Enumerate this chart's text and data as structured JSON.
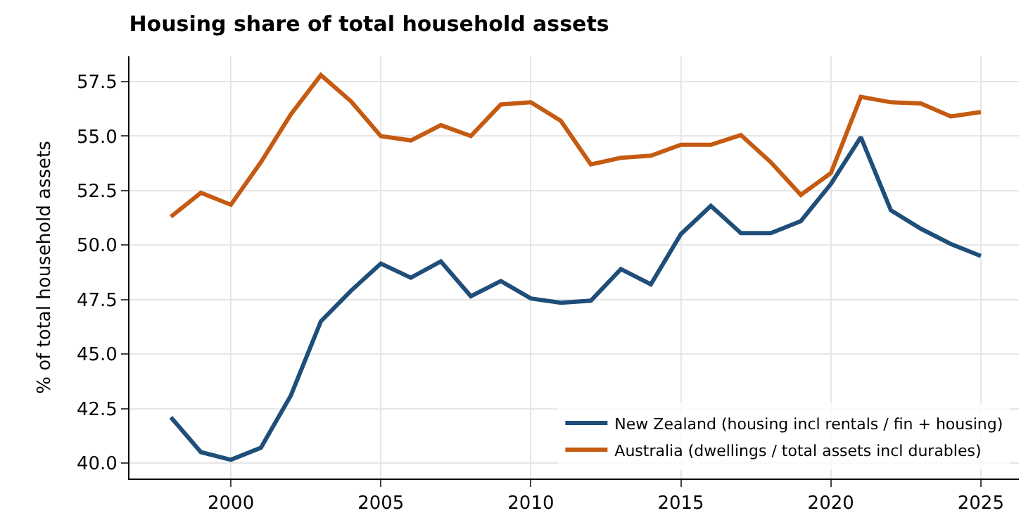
{
  "chart_data": {
    "type": "line",
    "title": "Housing share of total household assets",
    "ylabel": "% of total household assets",
    "x": [
      1998,
      1999,
      2000,
      2001,
      2002,
      2003,
      2004,
      2005,
      2006,
      2007,
      2008,
      2009,
      2010,
      2011,
      2012,
      2013,
      2014,
      2015,
      2016,
      2017,
      2018,
      2019,
      2020,
      2021,
      2022,
      2023,
      2024,
      2025
    ],
    "series": [
      {
        "name": "New Zealand (housing incl rentals / fin + housing)",
        "color": "#1f4e79",
        "values": [
          42.1,
          40.5,
          40.15,
          40.7,
          43.1,
          46.5,
          47.9,
          49.15,
          48.5,
          49.25,
          47.65,
          48.35,
          47.55,
          47.35,
          47.45,
          48.9,
          48.2,
          50.5,
          51.8,
          50.55,
          50.55,
          51.1,
          52.8,
          54.95,
          51.6,
          50.75,
          50.05,
          49.5
        ]
      },
      {
        "name": "Australia (dwellings / total assets incl durables)",
        "color": "#c55a11",
        "values": [
          51.3,
          52.4,
          51.85,
          53.8,
          56.0,
          57.8,
          56.6,
          55.0,
          54.8,
          55.5,
          55.0,
          56.45,
          56.55,
          55.7,
          53.7,
          54.0,
          54.1,
          54.6,
          54.6,
          55.05,
          53.8,
          52.3,
          53.3,
          56.8,
          56.55,
          56.5,
          55.9,
          56.1
        ]
      }
    ],
    "xlim": [
      1996.62,
      2026.27
    ],
    "xticks": [
      2000,
      2005,
      2010,
      2015,
      2020,
      2025
    ],
    "ylim": [
      39.29,
      58.66
    ],
    "yticks": [
      {
        "value": 40,
        "label": "40.0"
      },
      {
        "value": 42.5,
        "label": "42.5"
      },
      {
        "value": 45,
        "label": "45.0"
      },
      {
        "value": 47.5,
        "label": "47.5"
      },
      {
        "value": 50,
        "label": "50.0"
      },
      {
        "value": 52.5,
        "label": "52.5"
      },
      {
        "value": 55,
        "label": "55.0"
      },
      {
        "value": 57.5,
        "label": "57.5"
      }
    ],
    "grid": true,
    "legend": "bottom right",
    "marker": "none",
    "line_style": "solid"
  }
}
